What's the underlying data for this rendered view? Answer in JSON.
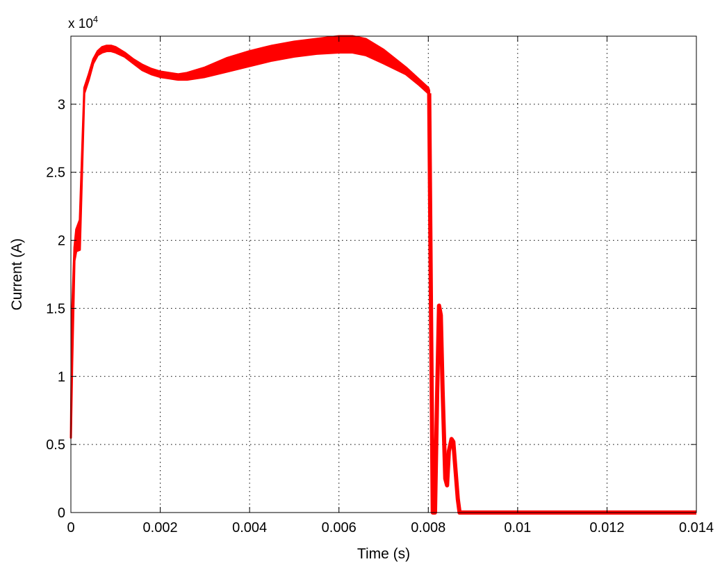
{
  "chart_data": {
    "type": "line",
    "xlabel": "Time (s)",
    "ylabel": "Current (A)",
    "y_multiplier": "x 10",
    "y_multiplier_exponent": "4",
    "xlim": [
      0,
      0.014
    ],
    "ylim": [
      0,
      3.5
    ],
    "x_ticks": [
      0,
      0.002,
      0.004,
      0.006,
      0.008,
      0.01,
      0.012,
      0.014
    ],
    "x_tick_labels": [
      "0",
      "0.002",
      "0.004",
      "0.006",
      "0.008",
      "0.01",
      "0.012",
      "0.014"
    ],
    "y_ticks": [
      0,
      0.5,
      1,
      1.5,
      2,
      2.5,
      3
    ],
    "y_tick_labels": [
      "0",
      "0.5",
      "1",
      "1.5",
      "2",
      "2.5",
      "3"
    ],
    "grid": true,
    "grid_style": "dotted",
    "series": [
      {
        "color": "#ff0000",
        "upper": [
          [
            0,
            0.55
          ],
          [
            3e-05,
            1.5
          ],
          [
            8e-05,
            1.95
          ],
          [
            0.00012,
            2.08
          ],
          [
            0.0002,
            2.15
          ],
          [
            0.0003,
            3.12
          ],
          [
            0.0004,
            3.22
          ],
          [
            0.0005,
            3.33
          ],
          [
            0.0006,
            3.39
          ],
          [
            0.0007,
            3.42
          ],
          [
            0.0008,
            3.43
          ],
          [
            0.0009,
            3.43
          ],
          [
            0.001,
            3.42
          ],
          [
            0.0012,
            3.38
          ],
          [
            0.0014,
            3.33
          ],
          [
            0.0016,
            3.29
          ],
          [
            0.0018,
            3.26
          ],
          [
            0.002,
            3.24
          ],
          [
            0.0022,
            3.23
          ],
          [
            0.0024,
            3.22
          ],
          [
            0.0026,
            3.23
          ],
          [
            0.003,
            3.27
          ],
          [
            0.0035,
            3.34
          ],
          [
            0.004,
            3.39
          ],
          [
            0.0045,
            3.43
          ],
          [
            0.005,
            3.46
          ],
          [
            0.0055,
            3.48
          ],
          [
            0.006,
            3.5
          ],
          [
            0.0063,
            3.5
          ],
          [
            0.0066,
            3.48
          ],
          [
            0.007,
            3.4
          ],
          [
            0.0075,
            3.27
          ],
          [
            0.0078,
            3.18
          ],
          [
            0.008,
            3.12
          ],
          [
            0.00802,
            3.1
          ]
        ],
        "lower": [
          [
            0,
            0.55
          ],
          [
            3e-05,
            1.1
          ],
          [
            8e-05,
            1.85
          ],
          [
            0.00012,
            1.92
          ],
          [
            0.0002,
            1.93
          ],
          [
            0.0003,
            3.08
          ],
          [
            0.0004,
            3.18
          ],
          [
            0.0005,
            3.3
          ],
          [
            0.0006,
            3.36
          ],
          [
            0.0007,
            3.38
          ],
          [
            0.0008,
            3.39
          ],
          [
            0.0009,
            3.39
          ],
          [
            0.001,
            3.38
          ],
          [
            0.0012,
            3.35
          ],
          [
            0.0014,
            3.3
          ],
          [
            0.0016,
            3.25
          ],
          [
            0.0018,
            3.22
          ],
          [
            0.002,
            3.2
          ],
          [
            0.0022,
            3.19
          ],
          [
            0.0024,
            3.18
          ],
          [
            0.0026,
            3.18
          ],
          [
            0.003,
            3.2
          ],
          [
            0.0035,
            3.24
          ],
          [
            0.004,
            3.28
          ],
          [
            0.0045,
            3.32
          ],
          [
            0.005,
            3.35
          ],
          [
            0.0055,
            3.37
          ],
          [
            0.006,
            3.38
          ],
          [
            0.0063,
            3.38
          ],
          [
            0.0066,
            3.36
          ],
          [
            0.007,
            3.3
          ],
          [
            0.0075,
            3.22
          ],
          [
            0.0078,
            3.14
          ],
          [
            0.008,
            3.08
          ],
          [
            0.00802,
            3.06
          ]
        ],
        "tail": [
          [
            0.00802,
            3.08
          ],
          [
            0.00806,
            1.5
          ],
          [
            0.0081,
            0
          ],
          [
            0.00815,
            0
          ],
          [
            0.0082,
            0.9
          ],
          [
            0.00824,
            1.52
          ],
          [
            0.00828,
            1.45
          ],
          [
            0.00832,
            0.9
          ],
          [
            0.00838,
            0.25
          ],
          [
            0.00842,
            0.2
          ],
          [
            0.00846,
            0.45
          ],
          [
            0.00852,
            0.54
          ],
          [
            0.00856,
            0.52
          ],
          [
            0.0086,
            0.35
          ],
          [
            0.00866,
            0.1
          ],
          [
            0.0087,
            0
          ],
          [
            0.014,
            0
          ]
        ]
      }
    ]
  }
}
